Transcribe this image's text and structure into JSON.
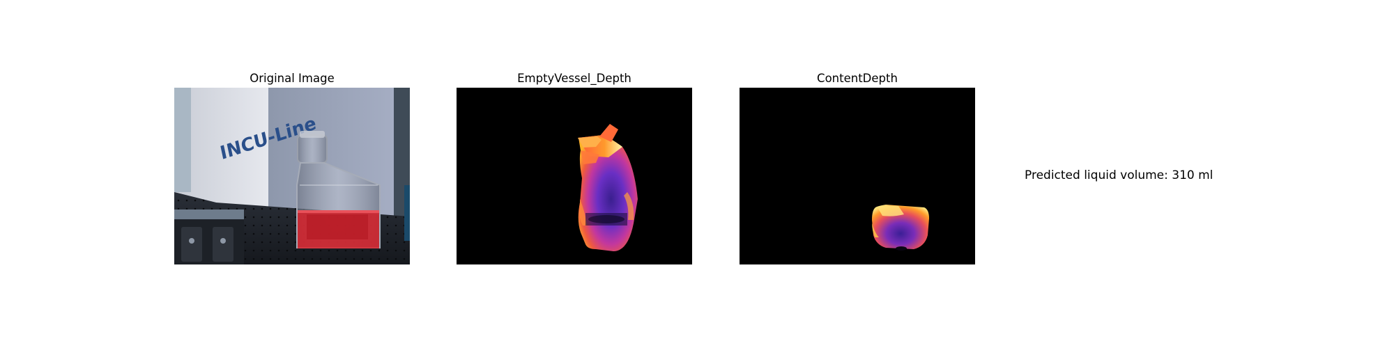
{
  "panels": [
    {
      "title": "Original Image"
    },
    {
      "title": "EmptyVessel_Depth"
    },
    {
      "title": "ContentDepth"
    }
  ],
  "photo": {
    "label_text": "INCU-Line"
  },
  "prediction": {
    "text": "Predicted liquid volume: 310 ml"
  }
}
